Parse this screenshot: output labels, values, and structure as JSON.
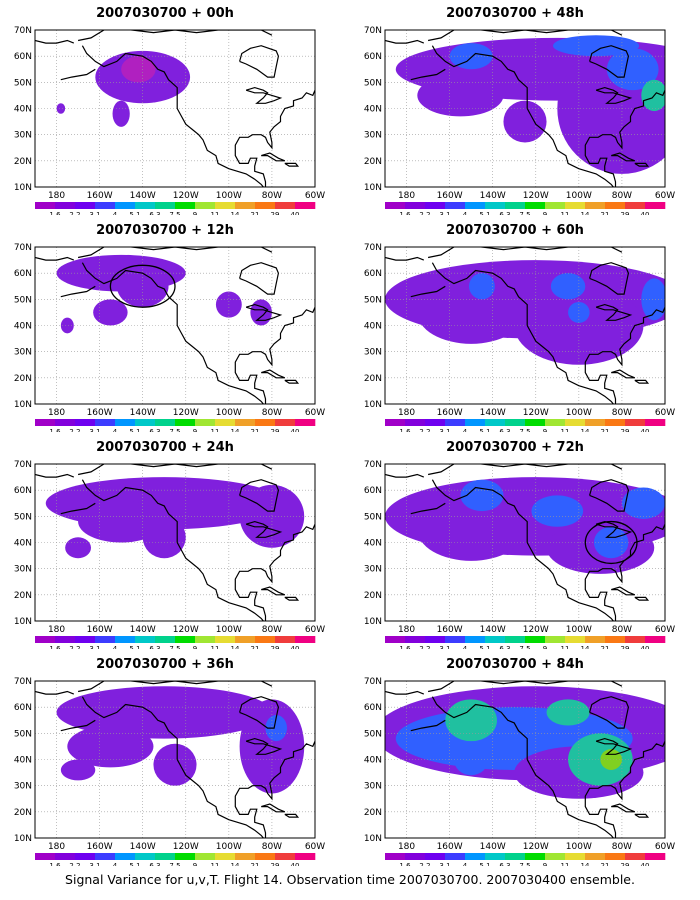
{
  "panels": [
    {
      "title": "2007030700 + 00h",
      "circle": null,
      "blobs": [
        [
          -140,
          52,
          22,
          10,
          "#8020dd"
        ],
        [
          -142,
          55,
          8,
          5,
          "#b020c0"
        ],
        [
          -150,
          38,
          4,
          5,
          "#8020dd"
        ],
        [
          -178,
          40,
          2,
          2,
          "#8020dd"
        ]
      ]
    },
    {
      "title": "2007030700 + 48h",
      "circle": null,
      "blobs": [
        [
          -110,
          55,
          75,
          12,
          "#8020dd"
        ],
        [
          -155,
          45,
          20,
          8,
          "#8020dd"
        ],
        [
          -125,
          35,
          10,
          8,
          "#8020dd"
        ],
        [
          -80,
          40,
          30,
          25,
          "#8020dd"
        ],
        [
          -150,
          60,
          10,
          5,
          "#3060ff"
        ],
        [
          -75,
          55,
          12,
          8,
          "#3060ff"
        ],
        [
          -65,
          45,
          6,
          6,
          "#20c0a0"
        ],
        [
          -92,
          64,
          20,
          4,
          "#3060ff"
        ]
      ]
    },
    {
      "title": "2007030700 + 12h",
      "circle": [
        -140,
        55,
        15,
        8
      ],
      "blobs": [
        [
          -150,
          60,
          30,
          7,
          "#8020dd"
        ],
        [
          -140,
          55,
          12,
          8,
          "#8020dd"
        ],
        [
          -155,
          45,
          8,
          5,
          "#8020dd"
        ],
        [
          -175,
          40,
          3,
          3,
          "#8020dd"
        ],
        [
          -100,
          48,
          6,
          5,
          "#8020dd"
        ],
        [
          -85,
          45,
          5,
          5,
          "#8020dd"
        ]
      ]
    },
    {
      "title": "2007030700 + 60h",
      "circle": null,
      "blobs": [
        [
          -120,
          50,
          70,
          15,
          "#8020dd"
        ],
        [
          -150,
          45,
          25,
          12,
          "#8020dd"
        ],
        [
          -100,
          40,
          30,
          15,
          "#8020dd"
        ],
        [
          -145,
          55,
          6,
          5,
          "#3060ff"
        ],
        [
          -105,
          55,
          8,
          5,
          "#3060ff"
        ],
        [
          -100,
          45,
          5,
          4,
          "#3060ff"
        ],
        [
          -65,
          50,
          6,
          8,
          "#3060ff"
        ]
      ]
    },
    {
      "title": "2007030700 + 24h",
      "circle": null,
      "blobs": [
        [
          -130,
          55,
          55,
          10,
          "#8020dd"
        ],
        [
          -150,
          48,
          20,
          8,
          "#8020dd"
        ],
        [
          -130,
          42,
          10,
          8,
          "#8020dd"
        ],
        [
          -170,
          38,
          6,
          4,
          "#8020dd"
        ],
        [
          -80,
          50,
          15,
          12,
          "#8020dd"
        ]
      ]
    },
    {
      "title": "2007030700 + 72h",
      "circle": [
        -85,
        40,
        12,
        8
      ],
      "blobs": [
        [
          -120,
          50,
          70,
          15,
          "#8020dd"
        ],
        [
          -150,
          45,
          25,
          12,
          "#8020dd"
        ],
        [
          -90,
          38,
          25,
          10,
          "#8020dd"
        ],
        [
          -145,
          58,
          10,
          6,
          "#3060ff"
        ],
        [
          -110,
          52,
          12,
          6,
          "#3060ff"
        ],
        [
          -85,
          40,
          8,
          6,
          "#3060ff"
        ],
        [
          -70,
          55,
          10,
          6,
          "#3060ff"
        ]
      ]
    },
    {
      "title": "2007030700 + 36h",
      "circle": null,
      "blobs": [
        [
          -130,
          58,
          50,
          10,
          "#8020dd"
        ],
        [
          -155,
          45,
          20,
          8,
          "#8020dd"
        ],
        [
          -125,
          38,
          10,
          8,
          "#8020dd"
        ],
        [
          -170,
          36,
          8,
          4,
          "#8020dd"
        ],
        [
          -80,
          45,
          15,
          18,
          "#8020dd"
        ],
        [
          -78,
          52,
          5,
          5,
          "#3060ff"
        ]
      ]
    },
    {
      "title": "2007030700 + 84h",
      "circle": null,
      "blobs": [
        [
          -120,
          50,
          75,
          18,
          "#8020dd"
        ],
        [
          -130,
          48,
          55,
          12,
          "#3060ff"
        ],
        [
          -100,
          35,
          30,
          10,
          "#8020dd"
        ],
        [
          -150,
          55,
          12,
          8,
          "#20c0a0"
        ],
        [
          -90,
          40,
          15,
          10,
          "#20c0a0"
        ],
        [
          -85,
          40,
          5,
          4,
          "#80d020"
        ],
        [
          -150,
          40,
          8,
          6,
          "#3060ff"
        ],
        [
          -105,
          58,
          10,
          5,
          "#20c0a0"
        ]
      ]
    }
  ],
  "axes": {
    "lon_range": [
      -190,
      -60
    ],
    "lat_range": [
      10,
      70
    ],
    "lat_labels": [
      "10N",
      "20N",
      "30N",
      "40N",
      "50N",
      "60N",
      "70N"
    ],
    "lon_labels": [
      "180",
      "160W",
      "140W",
      "120W",
      "100W",
      "80W",
      "60W"
    ]
  },
  "colorbar": {
    "labels": [
      "1.6",
      "2.2",
      "3.1",
      "4",
      "5.1",
      "6.3",
      "7.5",
      "9",
      "11",
      "14",
      "21",
      "29",
      "40"
    ],
    "colors": [
      "#a000c8",
      "#8200dc",
      "#6e00f0",
      "#3c3cff",
      "#0096ff",
      "#00c8c8",
      "#00d28c",
      "#00dc00",
      "#a0e632",
      "#e6dc32",
      "#f0a028",
      "#fa7814",
      "#f03c3c",
      "#f00082"
    ]
  },
  "footer": "Signal Variance for u,v,T. Flight 14. Observation time 2007030700. 2007030400 ensemble."
}
